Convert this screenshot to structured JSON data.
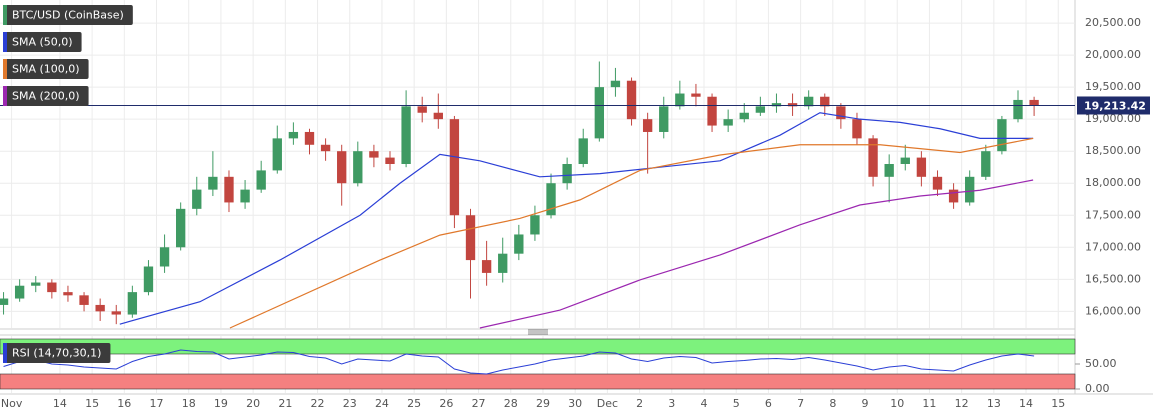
{
  "chart_data": [
    {
      "type": "candlestick",
      "name": "BTC/USD (CoinBase)",
      "up_color": "#3f9a63",
      "down_color": "#c2453f",
      "xlim": [
        12.14,
        45.52
      ],
      "ylim": [
        15740,
        20860
      ],
      "grid": true,
      "xticks": [
        {
          "value": 12.5,
          "label": "Nov"
        },
        14,
        15,
        16,
        17,
        18,
        19,
        20,
        21,
        22,
        23,
        24,
        25,
        26,
        27,
        28,
        29,
        30,
        {
          "value": 31,
          "label": "Dec"
        },
        {
          "value": 32,
          "label": "2"
        },
        {
          "value": 33,
          "label": "3"
        },
        {
          "value": 34,
          "label": "4"
        },
        {
          "value": 35,
          "label": "5"
        },
        {
          "value": 36,
          "label": "6"
        },
        {
          "value": 37,
          "label": "7"
        },
        {
          "value": 38,
          "label": "8"
        },
        {
          "value": 39,
          "label": "9"
        },
        {
          "value": 40,
          "label": "10"
        },
        {
          "value": 41,
          "label": "11"
        },
        {
          "value": 42,
          "label": "12"
        },
        {
          "value": 43,
          "label": "13"
        },
        {
          "value": 44,
          "label": "14"
        },
        {
          "value": 45,
          "label": "15"
        }
      ],
      "yticks": [
        {
          "value": 16000,
          "label": "16,000.00"
        },
        {
          "value": 16500,
          "label": "16,500.00"
        },
        {
          "value": 17000,
          "label": "17,000.00"
        },
        {
          "value": 17500,
          "label": "17,500.00"
        },
        {
          "value": 18000,
          "label": "18,000.00"
        },
        {
          "value": 18500,
          "label": "18,500.00"
        },
        {
          "value": 19000,
          "label": "19,000.00"
        },
        {
          "value": 19500,
          "label": "19,500.00"
        },
        {
          "value": 20000,
          "label": "20,000.00"
        },
        {
          "value": 20500,
          "label": "20,500.00"
        }
      ],
      "last_price_label": "19,213.42",
      "last_price_color": "#1f2c6b",
      "x": [
        12.25,
        12.75,
        13.25,
        13.75,
        14.25,
        14.75,
        15.25,
        15.75,
        16.25,
        16.75,
        17.25,
        17.75,
        18.25,
        18.75,
        19.25,
        19.75,
        20.25,
        20.75,
        21.25,
        21.75,
        22.25,
        22.75,
        23.25,
        23.75,
        24.25,
        24.75,
        25.25,
        25.75,
        26.25,
        26.75,
        27.25,
        27.75,
        28.25,
        28.75,
        29.25,
        29.75,
        30.25,
        30.75,
        31.25,
        31.75,
        32.25,
        32.75,
        33.25,
        33.75,
        34.25,
        34.75,
        35.25,
        35.75,
        36.25,
        36.75,
        37.25,
        37.75,
        38.25,
        38.75,
        39.25,
        39.75,
        40.25,
        40.75,
        41.25,
        41.75,
        42.25,
        42.75,
        43.25,
        43.75,
        44.25
      ],
      "open": [
        16100,
        16200,
        16400,
        16450,
        16300,
        16250,
        16100,
        16000,
        15950,
        16300,
        16700,
        17000,
        17600,
        17900,
        18100,
        17700,
        17900,
        18200,
        18700,
        18800,
        18600,
        18500,
        18000,
        18500,
        18400,
        18300,
        19200,
        19100,
        19000,
        17500,
        16800,
        16600,
        16900,
        17200,
        17500,
        18000,
        18300,
        18700,
        19500,
        19600,
        19000,
        18800,
        19200,
        19400,
        19350,
        18900,
        19000,
        19100,
        19200,
        19250,
        19200,
        19350,
        19200,
        19000,
        18700,
        18100,
        18300,
        18400,
        18100,
        17900,
        17700,
        18100,
        18500,
        19000,
        19300
      ],
      "high": [
        16300,
        16500,
        16550,
        16500,
        16400,
        16300,
        16200,
        16100,
        16400,
        16800,
        17200,
        17700,
        18100,
        18500,
        18200,
        18050,
        18350,
        18900,
        18950,
        18850,
        18700,
        18600,
        18650,
        18600,
        18500,
        19450,
        19350,
        19400,
        19050,
        17600,
        17100,
        17150,
        17350,
        17650,
        18150,
        18400,
        18850,
        19900,
        19800,
        19650,
        19100,
        19350,
        19600,
        19550,
        19400,
        19150,
        19250,
        19350,
        19400,
        19400,
        19450,
        19400,
        19250,
        19100,
        18750,
        18450,
        18600,
        18500,
        18200,
        18000,
        18200,
        18600,
        19050,
        19450,
        19350
      ],
      "low": [
        15950,
        16150,
        16300,
        16200,
        16150,
        16000,
        15850,
        15800,
        15900,
        16250,
        16600,
        16950,
        17500,
        17800,
        17550,
        17600,
        17850,
        18150,
        18600,
        18450,
        18350,
        17650,
        17950,
        18250,
        18200,
        18250,
        18950,
        18850,
        17300,
        16200,
        16400,
        16450,
        16800,
        17100,
        17450,
        17900,
        18250,
        18650,
        19350,
        18900,
        18150,
        18700,
        19150,
        19200,
        18800,
        18800,
        18950,
        19050,
        19100,
        19050,
        19150,
        19050,
        18850,
        18600,
        17950,
        17700,
        18200,
        17950,
        17800,
        17600,
        17650,
        18050,
        18450,
        18950,
        19050
      ],
      "close": [
        16200,
        16400,
        16450,
        16300,
        16250,
        16100,
        16000,
        15950,
        16300,
        16700,
        17000,
        17600,
        17900,
        18100,
        17700,
        17900,
        18200,
        18700,
        18800,
        18600,
        18500,
        18000,
        18500,
        18400,
        18300,
        19200,
        19100,
        19000,
        17500,
        16800,
        16600,
        16900,
        17200,
        17500,
        18000,
        18300,
        18700,
        19500,
        19600,
        19000,
        18800,
        19200,
        19400,
        19350,
        18900,
        19000,
        19100,
        19200,
        19250,
        19200,
        19350,
        19200,
        19000,
        18700,
        18100,
        18300,
        18400,
        18100,
        17900,
        17700,
        18100,
        18500,
        19000,
        19300,
        19213.42
      ],
      "series": [
        {
          "name": "SMA (50,0)",
          "color": "#2b3fd6",
          "x": [
            15.86,
            18.35,
            20.83,
            23.32,
            24.56,
            25.8,
            27.04,
            28.9,
            30.77,
            32.63,
            34.5,
            36.36,
            37.6,
            38.84,
            40.09,
            41.33,
            42.57,
            44.22
          ],
          "values": [
            15800,
            16150,
            16800,
            17500,
            18000,
            18450,
            18350,
            18100,
            18150,
            18250,
            18350,
            18750,
            19100,
            19000,
            18950,
            18850,
            18700,
            18700
          ]
        },
        {
          "name": "SMA (100,0)",
          "color": "#e0782b",
          "x": [
            19.28,
            23.94,
            25.8,
            28.28,
            30.15,
            32.01,
            34.5,
            36.98,
            39.47,
            41.95,
            44.22
          ],
          "values": [
            15740,
            16800,
            17190,
            17450,
            17740,
            18200,
            18440,
            18600,
            18600,
            18480,
            18700
          ]
        },
        {
          "name": "SMA (200,0)",
          "color": "#9b27b0",
          "x": [
            27.04,
            29.53,
            32.01,
            34.5,
            36.98,
            38.84,
            40.71,
            42.57,
            44.22
          ],
          "values": [
            15740,
            16020,
            16490,
            16880,
            17350,
            17660,
            17800,
            17890,
            18050
          ]
        }
      ]
    },
    {
      "type": "line",
      "ylim": [
        0,
        100
      ],
      "yticks": [
        {
          "value": 50,
          "label": "50.00"
        },
        {
          "value": 0,
          "label": "0.00"
        }
      ],
      "overbought": 70,
      "oversold": 30,
      "overbought_color": "#7df27d",
      "oversold_color": "#f58080",
      "x": [
        12.25,
        12.75,
        13.25,
        13.75,
        14.25,
        14.75,
        15.25,
        15.75,
        16.25,
        16.75,
        17.25,
        17.75,
        18.25,
        18.75,
        19.25,
        19.75,
        20.25,
        20.75,
        21.25,
        21.75,
        22.25,
        22.75,
        23.25,
        23.75,
        24.25,
        24.75,
        25.25,
        25.75,
        26.25,
        26.75,
        27.25,
        27.75,
        28.25,
        28.75,
        29.25,
        29.75,
        30.25,
        30.75,
        31.25,
        31.75,
        32.25,
        32.75,
        33.25,
        33.75,
        34.25,
        34.75,
        35.25,
        35.75,
        36.25,
        36.75,
        37.25,
        37.75,
        38.25,
        38.75,
        39.25,
        39.75,
        40.25,
        40.75,
        41.25,
        41.75,
        42.25,
        42.75,
        43.25,
        43.75,
        44.25
      ],
      "series": [
        {
          "name": "RSI (14,70,30,1)",
          "color": "#2b3fd6",
          "values": [
            45,
            55,
            58,
            50,
            48,
            44,
            42,
            40,
            55,
            65,
            70,
            78,
            75,
            74,
            60,
            64,
            68,
            74,
            73,
            65,
            62,
            50,
            60,
            58,
            56,
            70,
            66,
            64,
            40,
            32,
            30,
            38,
            44,
            50,
            58,
            62,
            66,
            74,
            72,
            60,
            55,
            62,
            65,
            63,
            52,
            55,
            57,
            60,
            61,
            59,
            63,
            58,
            52,
            46,
            38,
            44,
            47,
            40,
            38,
            36,
            48,
            58,
            66,
            70,
            66
          ]
        }
      ]
    }
  ]
}
